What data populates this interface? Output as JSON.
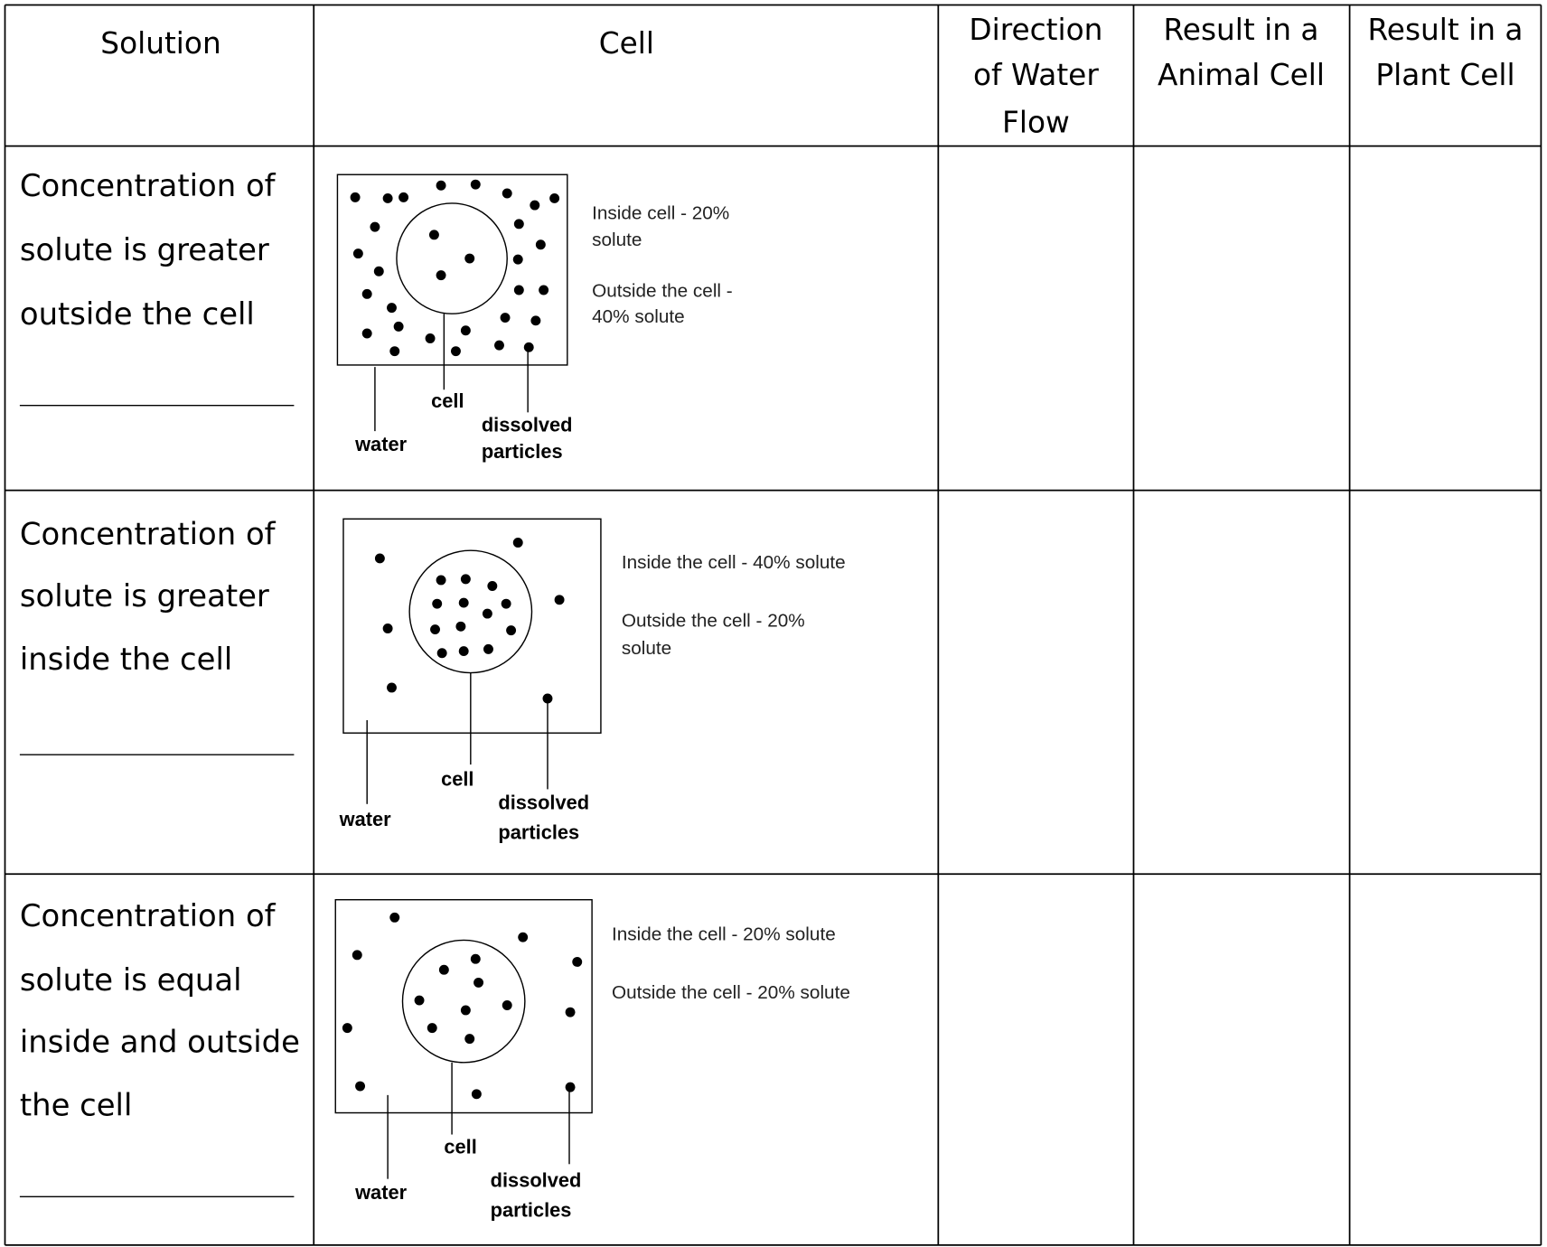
{
  "table": {
    "headers": [
      [
        "Solution"
      ],
      [
        "Cell"
      ],
      [
        "Direction",
        "of Water",
        "Flow"
      ],
      [
        "Result in a",
        "Animal Cell"
      ],
      [
        "Result in a",
        "Plant Cell"
      ]
    ],
    "rows": [
      {
        "solution": [
          "Concentration of",
          "solute is greater",
          "outside the cell"
        ],
        "diagram": {
          "inside": [
            "Inside cell - 20%",
            "solute"
          ],
          "outside": [
            "Outside the cell -",
            "40% solute"
          ],
          "cell_label": "cell",
          "water_label": "water",
          "particles_label": [
            "dissolved",
            "particles"
          ]
        }
      },
      {
        "solution": [
          "Concentration of",
          "solute is greater",
          "inside the cell"
        ],
        "diagram": {
          "inside": [
            "Inside the cell - 40% solute"
          ],
          "outside": [
            "Outside the cell - 20%",
            "solute"
          ],
          "cell_label": "cell",
          "water_label": "water",
          "particles_label": [
            "dissolved",
            "particles"
          ]
        }
      },
      {
        "solution": [
          "Concentration of",
          "solute is equal",
          "inside and outside",
          "the cell"
        ],
        "diagram": {
          "inside": [
            "Inside the cell - 20% solute"
          ],
          "outside": [
            "Outside the cell - 20% solute"
          ],
          "cell_label": "cell",
          "water_label": "water",
          "particles_label": [
            "dissolved",
            "particles"
          ]
        }
      }
    ]
  }
}
